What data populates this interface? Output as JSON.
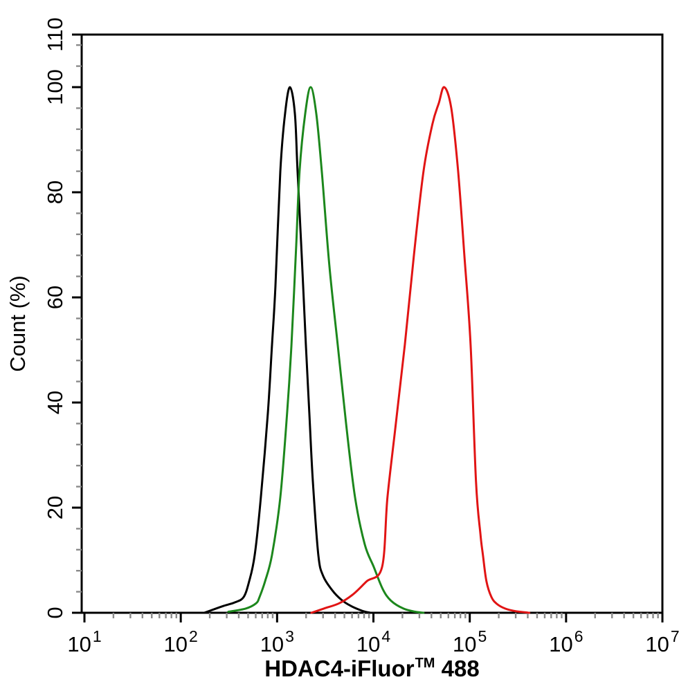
{
  "figure": {
    "background": "#ffffff",
    "axis_color": "#000000",
    "minor_tick_color": "#8a8a8a",
    "curve_stroke_width": 3
  },
  "chart_data": {
    "type": "line",
    "subtype": "flow-cytometry-overlay-histogram",
    "title": "",
    "xlabel": "HDAC4-iFluor™ 488",
    "ylabel": "Count (%)",
    "x_scale": "log10",
    "xlim": [
      10,
      10000000
    ],
    "ylim": [
      0,
      110
    ],
    "grid": false,
    "legend": "none",
    "frame": "box",
    "tick_direction": "out",
    "y_tick_label_rotation": 90,
    "x_ticks": [
      {
        "base": "10",
        "exponent": "1",
        "value": 10
      },
      {
        "base": "10",
        "exponent": "2",
        "value": 100
      },
      {
        "base": "10",
        "exponent": "3",
        "value": 1000
      },
      {
        "base": "10",
        "exponent": "4",
        "value": 10000
      },
      {
        "base": "10",
        "exponent": "5",
        "value": 100000
      },
      {
        "base": "10",
        "exponent": "6",
        "value": 1000000
      },
      {
        "base": "10",
        "exponent": "7",
        "value": 10000000
      }
    ],
    "x_minor_ticks": "log multiples 2-9 within each decade",
    "y_ticks": [
      0,
      20,
      40,
      60,
      80,
      100,
      110
    ],
    "y_minor_step": 4,
    "series": [
      {
        "name": "black-curve",
        "color": "#000000",
        "peak": {
          "x": 1360,
          "y": 100
        },
        "points": [
          [
            175,
            0
          ],
          [
            224,
            0.7
          ],
          [
            278,
            1.3
          ],
          [
            368,
            2
          ],
          [
            450,
            3
          ],
          [
            513,
            6
          ],
          [
            586,
            11
          ],
          [
            679,
            22
          ],
          [
            802,
            38
          ],
          [
            885,
            51
          ],
          [
            960,
            62
          ],
          [
            1080,
            84
          ],
          [
            1210,
            95
          ],
          [
            1360,
            100
          ],
          [
            1530,
            95
          ],
          [
            1630,
            84
          ],
          [
            1800,
            68
          ],
          [
            1990,
            51
          ],
          [
            2160,
            38
          ],
          [
            2350,
            25
          ],
          [
            2680,
            11
          ],
          [
            3010,
            7
          ],
          [
            3730,
            4.3
          ],
          [
            4630,
            2.5
          ],
          [
            5830,
            1.3
          ],
          [
            7600,
            0.4
          ],
          [
            9270,
            0
          ]
        ]
      },
      {
        "name": "green-curve",
        "color": "#1c871c",
        "peak": {
          "x": 2230,
          "y": 100
        },
        "points": [
          [
            312,
            0.2
          ],
          [
            472,
            0.8
          ],
          [
            605,
            1.8
          ],
          [
            657,
            3
          ],
          [
            750,
            6
          ],
          [
            885,
            11
          ],
          [
            1080,
            22
          ],
          [
            1270,
            38
          ],
          [
            1410,
            51
          ],
          [
            1580,
            70
          ],
          [
            1710,
            84
          ],
          [
            1960,
            95
          ],
          [
            2230,
            100
          ],
          [
            2550,
            95
          ],
          [
            2910,
            84
          ],
          [
            3490,
            66
          ],
          [
            4260,
            51
          ],
          [
            5200,
            36
          ],
          [
            6440,
            22
          ],
          [
            8130,
            13
          ],
          [
            10100,
            8.7
          ],
          [
            12500,
            4.5
          ],
          [
            15200,
            2.3
          ],
          [
            20500,
            0.8
          ],
          [
            27200,
            0.2
          ],
          [
            33100,
            0
          ]
        ]
      },
      {
        "name": "red-curve",
        "color": "#e11414",
        "peak": {
          "x": 54300,
          "y": 100
        },
        "points": [
          [
            2270,
            0
          ],
          [
            3060,
            0.8
          ],
          [
            4410,
            1.8
          ],
          [
            6140,
            3.5
          ],
          [
            8530,
            6
          ],
          [
            12300,
            8.7
          ],
          [
            14000,
            22
          ],
          [
            17100,
            36
          ],
          [
            21200,
            51
          ],
          [
            26300,
            68
          ],
          [
            33100,
            84
          ],
          [
            41000,
            93
          ],
          [
            47800,
            97
          ],
          [
            54300,
            100
          ],
          [
            64300,
            96
          ],
          [
            75700,
            84
          ],
          [
            87900,
            68
          ],
          [
            102000,
            51
          ],
          [
            116000,
            25
          ],
          [
            129000,
            15
          ],
          [
            137000,
            11
          ],
          [
            149000,
            6
          ],
          [
            168000,
            3
          ],
          [
            191000,
            1.7
          ],
          [
            233000,
            0.8
          ],
          [
            299000,
            0.3
          ],
          [
            416000,
            0
          ]
        ]
      }
    ]
  }
}
